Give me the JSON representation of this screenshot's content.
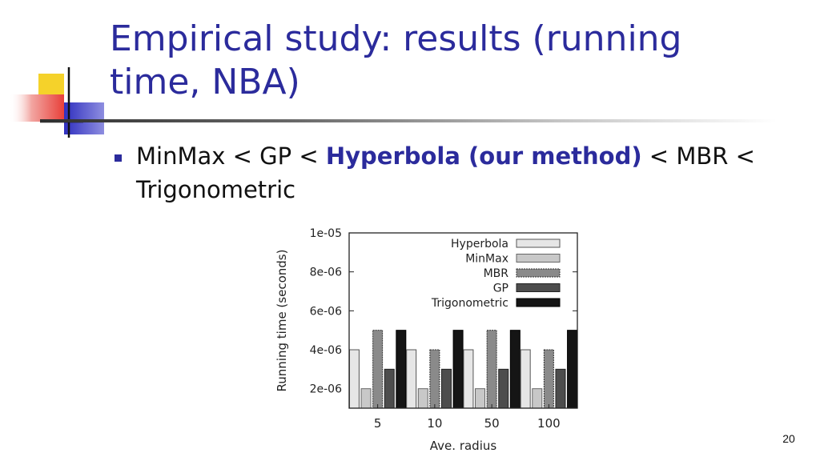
{
  "slide": {
    "title": "Empirical study: results (running time, NBA)",
    "bullet": {
      "part1": "MinMax < GP < ",
      "highlight": "Hyperbola (our method)",
      "part2": " < MBR < Trigonometric"
    },
    "page_number": "20"
  },
  "colors": {
    "title": "#2b2b9c",
    "highlight": "#2b2b9c",
    "logo_yellow": "#f5d22a",
    "logo_blue": "#2f2fbf",
    "logo_red": "#e8403a"
  },
  "chart_data": {
    "type": "bar",
    "title": "",
    "xlabel": "Ave. radius",
    "ylabel": "Running time (seconds)",
    "categories": [
      "5",
      "10",
      "50",
      "100"
    ],
    "ylim": [
      1e-06,
      1e-05
    ],
    "yticks": [
      2e-06,
      4e-06,
      6e-06,
      8e-06,
      1e-05
    ],
    "ytick_labels": [
      "2e-06",
      "4e-06",
      "6e-06",
      "8e-06",
      "1e-05"
    ],
    "legend_position": "top-right",
    "series": [
      {
        "name": "Hyperbola",
        "values": [
          4e-06,
          4e-06,
          4e-06,
          4e-06
        ],
        "color": "#e6e6e6",
        "border": "#555555"
      },
      {
        "name": "MinMax",
        "values": [
          2e-06,
          2e-06,
          2e-06,
          2e-06
        ],
        "color": "#c8c8c8",
        "border": "#666666"
      },
      {
        "name": "MBR",
        "values": [
          5e-06,
          4e-06,
          5e-06,
          4e-06
        ],
        "color": "#8a8a8a",
        "border": "#333333"
      },
      {
        "name": "GP",
        "values": [
          3e-06,
          3e-06,
          3e-06,
          3e-06
        ],
        "color": "#4d4d4d",
        "border": "#222222"
      },
      {
        "name": "Trigonometric",
        "values": [
          5e-06,
          5e-06,
          5e-06,
          5e-06
        ],
        "color": "#151515",
        "border": "#000000"
      }
    ]
  }
}
